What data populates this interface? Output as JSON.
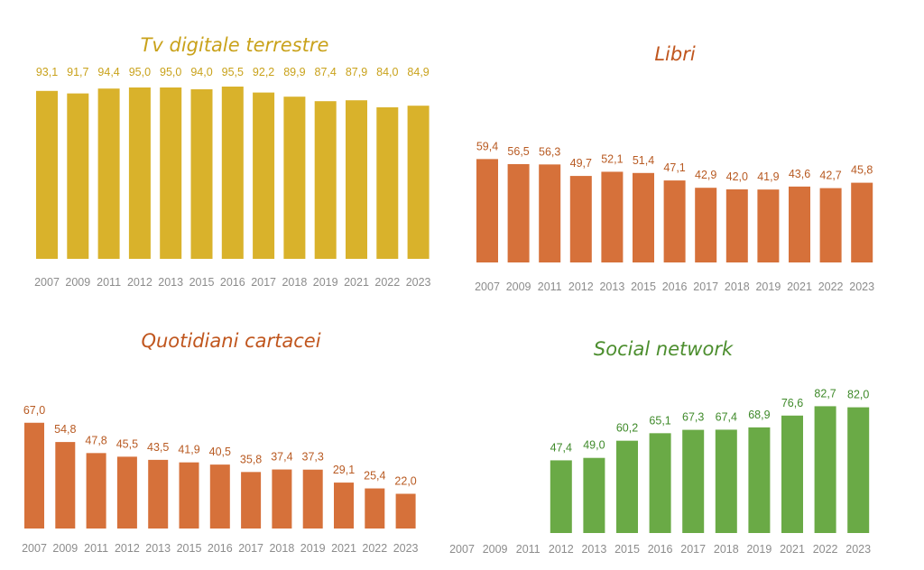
{
  "chart_data": [
    {
      "type": "bar",
      "title": "Tv digitale terrestre",
      "color": "#D9B22B",
      "categories": [
        "2007",
        "2009",
        "2011",
        "2012",
        "2013",
        "2015",
        "2016",
        "2017",
        "2018",
        "2019",
        "2021",
        "2022",
        "2023"
      ],
      "values": [
        93.1,
        91.7,
        94.4,
        95.0,
        95.0,
        94.0,
        95.5,
        92.2,
        89.9,
        87.4,
        87.9,
        84.0,
        84.9
      ],
      "value_labels": [
        "93,1",
        "91,7",
        "94,4",
        "95,0",
        "95,0",
        "94,0",
        "95,5",
        "92,2",
        "89,9",
        "87,4",
        "87,9",
        "84,0",
        "84,9"
      ],
      "label_color": "#C9A21B"
    },
    {
      "type": "bar",
      "title": "Libri",
      "color": "#D6713A",
      "categories": [
        "2007",
        "2009",
        "2011",
        "2012",
        "2013",
        "2015",
        "2016",
        "2017",
        "2018",
        "2019",
        "2021",
        "2022",
        "2023"
      ],
      "values": [
        59.4,
        56.5,
        56.3,
        49.7,
        52.1,
        51.4,
        47.1,
        42.9,
        42.0,
        41.9,
        43.6,
        42.7,
        45.8
      ],
      "value_labels": [
        "59,4",
        "56,5",
        "56,3",
        "49,7",
        "52,1",
        "51,4",
        "47,1",
        "42,9",
        "42,0",
        "41,9",
        "43,6",
        "42,7",
        "45,8"
      ],
      "label_color": "#B85A22"
    },
    {
      "type": "bar",
      "title": "Quotidiani cartacei",
      "color": "#D6713A",
      "categories": [
        "2007",
        "2009",
        "2011",
        "2012",
        "2013",
        "2015",
        "2016",
        "2017",
        "2018",
        "2019",
        "2021",
        "2022",
        "2023"
      ],
      "values": [
        67.0,
        54.8,
        47.8,
        45.5,
        43.5,
        41.9,
        40.5,
        35.8,
        37.4,
        37.3,
        29.1,
        25.4,
        22.0
      ],
      "value_labels": [
        "67,0",
        "54,8",
        "47,8",
        "45,5",
        "43,5",
        "41,9",
        "40,5",
        "35,8",
        "37,4",
        "37,3",
        "29,1",
        "25,4",
        "22,0"
      ],
      "label_color": "#B85A22"
    },
    {
      "type": "bar",
      "title": "Social network",
      "color": "#6AAA46",
      "categories": [
        "2007",
        "2009",
        "2011",
        "2012",
        "2013",
        "2015",
        "2016",
        "2017",
        "2018",
        "2019",
        "2021",
        "2022",
        "2023"
      ],
      "values": [
        null,
        null,
        null,
        47.4,
        49.0,
        60.2,
        65.1,
        67.3,
        67.4,
        68.9,
        76.6,
        82.7,
        82.0
      ],
      "value_labels": [
        "",
        "",
        "",
        "47,4",
        "49,0",
        "60,2",
        "65,1",
        "67,3",
        "67,4",
        "68,9",
        "76,6",
        "82,7",
        "82,0"
      ],
      "label_color": "#3F8A2A"
    }
  ]
}
